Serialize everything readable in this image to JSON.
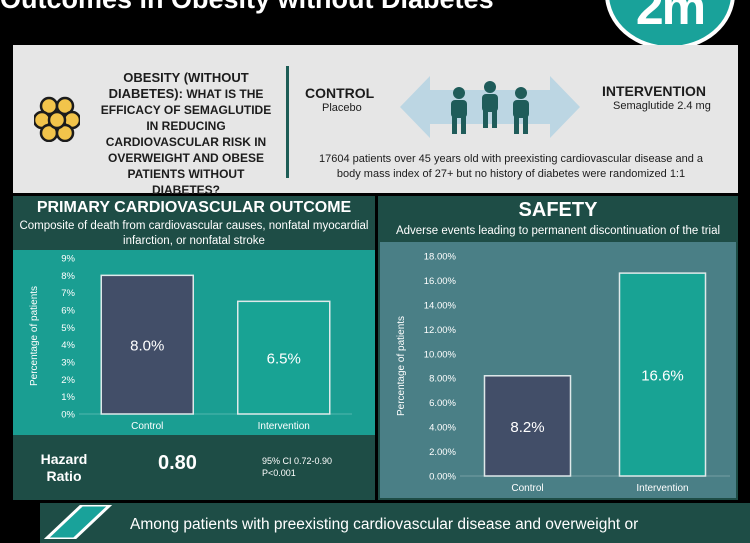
{
  "header": {
    "title": "Outcomes in Obesity without Diabetes",
    "logo_text": "2m"
  },
  "question": {
    "lead": "OBESITY (WITHOUT DIABETES):",
    "body": "WHAT IS THE EFFICACY OF SEMAGLUTIDE IN REDUCING CARDIOVASCULAR RISK IN OVERWEIGHT AND OBESE PATIENTS WITHOUT DIABETES?"
  },
  "groups": {
    "control_label": "CONTROL",
    "control_sub": "Placebo",
    "intervention_label": "INTERVENTION",
    "intervention_sub": "Semaglutide 2.4 mg"
  },
  "population": "17604 patients over 45 years old with preexisting cardiovascular disease and a body mass index of 27+ but no history of diabetes were randomized 1:1",
  "primary": {
    "title": "PRIMARY CARDIOVASCULAR OUTCOME",
    "subtitle": "Composite of death from cardiovascular causes, nonfatal myocardial infarction, or nonfatal stroke",
    "hr_label": "Hazard Ratio",
    "hr_value": "0.80",
    "ci": "95% CI 0.72-0.90",
    "p": "P<0.001"
  },
  "safety": {
    "title": "SAFETY",
    "subtitle": "Adverse events leading to permanent discontinuation of the trial"
  },
  "conclusion": "Among patients with preexisting cardiovascular disease and overweight or",
  "colors": {
    "control_bar": "#424e68",
    "intervention_bar": "#18a394",
    "panel_dark": "#1e4d46",
    "primary_plot_bg": "#1a9e92",
    "safety_plot_bg": "#4a7f86",
    "question_bg": "#e6e6e6"
  },
  "chart_data": [
    {
      "type": "bar",
      "categories": [
        "Control",
        "Intervention"
      ],
      "values": [
        8.0,
        6.5
      ],
      "value_labels": [
        "8.0%",
        "6.5%"
      ],
      "ylabel": "Percentage of patients",
      "ylim": [
        0,
        9
      ],
      "yticks": [
        0,
        1,
        2,
        3,
        4,
        5,
        6,
        7,
        8,
        9
      ],
      "ytick_labels": [
        "0%",
        "1%",
        "2%",
        "3%",
        "4%",
        "5%",
        "6%",
        "7%",
        "8%",
        "9%"
      ],
      "grid": false
    },
    {
      "type": "bar",
      "categories": [
        "Control",
        "Intervention"
      ],
      "values": [
        8.2,
        16.6
      ],
      "value_labels": [
        "8.2%",
        "16.6%"
      ],
      "ylabel": "Percentage of patients",
      "ylim": [
        0,
        18
      ],
      "yticks": [
        0,
        2,
        4,
        6,
        8,
        10,
        12,
        14,
        16,
        18
      ],
      "ytick_labels": [
        "0.00%",
        "2.00%",
        "4.00%",
        "6.00%",
        "8.00%",
        "10.00%",
        "12.00%",
        "14.00%",
        "16.00%",
        "18.00%"
      ],
      "grid": false
    }
  ]
}
